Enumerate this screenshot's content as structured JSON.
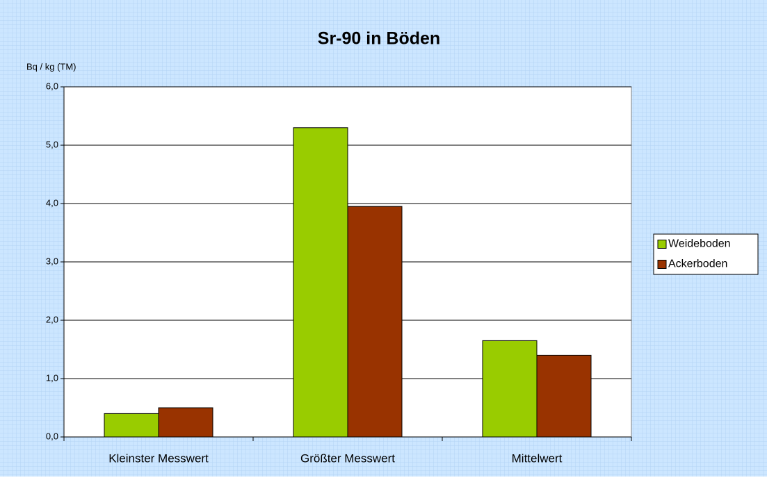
{
  "chart_data": {
    "type": "bar",
    "title": "Sr-90 in Böden",
    "y_label": "Bq / kg (TM)",
    "categories": [
      "Kleinster Messwert",
      "Größter Messwert",
      "Mittelwert"
    ],
    "series": [
      {
        "name": "Weideboden",
        "color": "#99cc00",
        "values": [
          0.4,
          5.3,
          1.65
        ]
      },
      {
        "name": "Ackerboden",
        "color": "#993300",
        "values": [
          0.5,
          3.95,
          1.4
        ]
      }
    ],
    "ylim": [
      0,
      6
    ],
    "yticks": [
      {
        "value": 0,
        "label": "0,0"
      },
      {
        "value": 1,
        "label": "1,0"
      },
      {
        "value": 2,
        "label": "2,0"
      },
      {
        "value": 3,
        "label": "3,0"
      },
      {
        "value": 4,
        "label": "4,0"
      },
      {
        "value": 5,
        "label": "5,0"
      },
      {
        "value": 6,
        "label": "6,0"
      }
    ],
    "grid": true,
    "legend": "right"
  }
}
